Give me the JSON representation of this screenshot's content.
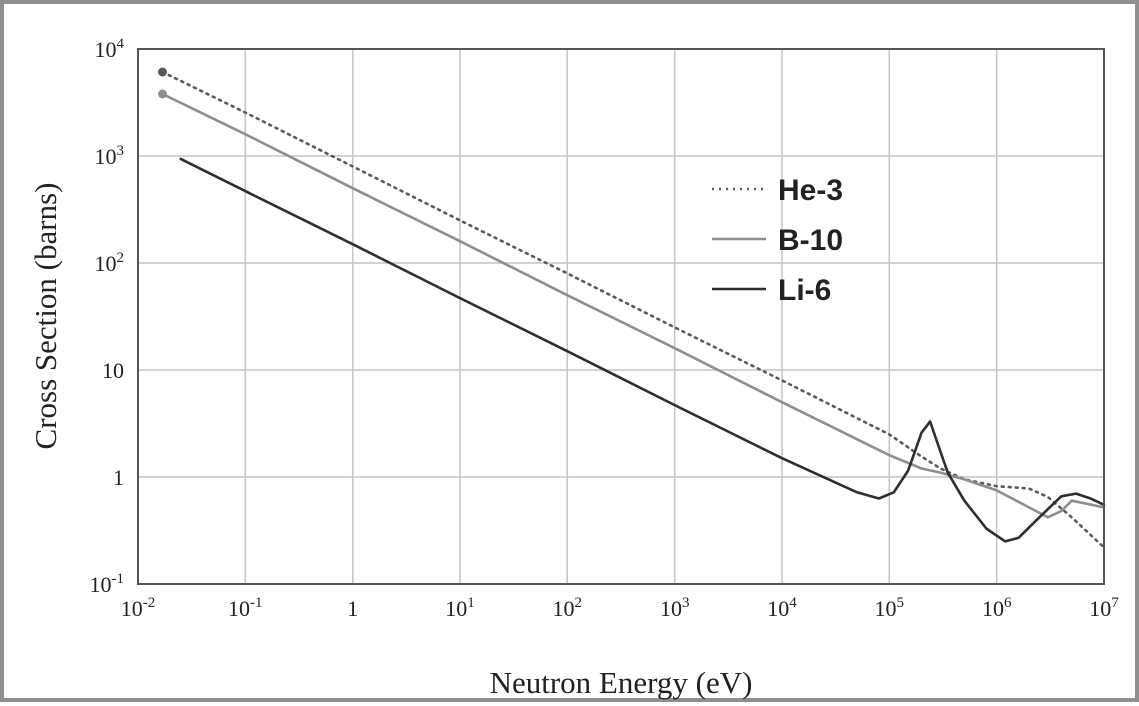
{
  "chart_data": {
    "type": "line",
    "title": "",
    "xlabel": "Neutron Energy (eV)",
    "ylabel": "Cross Section (barns)",
    "x_scale": "log",
    "y_scale": "log",
    "xlim": [
      0.01,
      10000000
    ],
    "ylim": [
      0.1,
      10000
    ],
    "grid": true,
    "legend_position": "top-right",
    "x_ticks": [
      {
        "value": 0.01,
        "base": "10",
        "exp": "-2"
      },
      {
        "value": 0.1,
        "base": "10",
        "exp": "-1"
      },
      {
        "value": 1,
        "base": "1",
        "exp": ""
      },
      {
        "value": 10,
        "base": "10",
        "exp": "1"
      },
      {
        "value": 100,
        "base": "10",
        "exp": "2"
      },
      {
        "value": 1000,
        "base": "10",
        "exp": "3"
      },
      {
        "value": 10000,
        "base": "10",
        "exp": "4"
      },
      {
        "value": 100000,
        "base": "10",
        "exp": "5"
      },
      {
        "value": 1000000,
        "base": "10",
        "exp": "6"
      },
      {
        "value": 10000000,
        "base": "10",
        "exp": "7"
      }
    ],
    "y_ticks": [
      {
        "value": 0.1,
        "base": "10",
        "exp": "-1"
      },
      {
        "value": 1,
        "base": "1",
        "exp": ""
      },
      {
        "value": 10,
        "base": "10",
        "exp": ""
      },
      {
        "value": 100,
        "base": "10",
        "exp": "2"
      },
      {
        "value": 1000,
        "base": "10",
        "exp": "3"
      },
      {
        "value": 10000,
        "base": "10",
        "exp": "4"
      }
    ],
    "series": [
      {
        "name": "He-3",
        "style": "dotted",
        "color": "#5a5a5a",
        "marker_at_start": true,
        "points": [
          [
            0.0169,
            6100
          ],
          [
            0.1,
            2550
          ],
          [
            1,
            800
          ],
          [
            10,
            250
          ],
          [
            100,
            80
          ],
          [
            1000,
            25
          ],
          [
            10000,
            8
          ],
          [
            100000,
            2.5
          ],
          [
            200000,
            1.55
          ],
          [
            300000,
            1.2
          ],
          [
            500000,
            0.95
          ],
          [
            1000000,
            0.82
          ],
          [
            2000000,
            0.78
          ],
          [
            3000000,
            0.65
          ],
          [
            5000000,
            0.42
          ],
          [
            10000000,
            0.22
          ]
        ]
      },
      {
        "name": "B-10",
        "style": "solid",
        "color": "#8e8e8e",
        "marker_at_start": true,
        "points": [
          [
            0.0169,
            3800
          ],
          [
            0.1,
            1600
          ],
          [
            1,
            500
          ],
          [
            10,
            160
          ],
          [
            100,
            50
          ],
          [
            1000,
            16
          ],
          [
            10000,
            5
          ],
          [
            100000,
            1.6
          ],
          [
            200000,
            1.2
          ],
          [
            300000,
            1.1
          ],
          [
            500000,
            0.95
          ],
          [
            1000000,
            0.75
          ],
          [
            2000000,
            0.52
          ],
          [
            3000000,
            0.42
          ],
          [
            4000000,
            0.48
          ],
          [
            5000000,
            0.6
          ],
          [
            10000000,
            0.52
          ]
        ]
      },
      {
        "name": "Li-6",
        "style": "solid",
        "color": "#2e2e2e",
        "marker_at_start": false,
        "points": [
          [
            0.025,
            940
          ],
          [
            0.1,
            470
          ],
          [
            1,
            150
          ],
          [
            10,
            47
          ],
          [
            100,
            15
          ],
          [
            1000,
            4.7
          ],
          [
            10000,
            1.5
          ],
          [
            50000,
            0.72
          ],
          [
            80000,
            0.63
          ],
          [
            110000,
            0.72
          ],
          [
            150000,
            1.15
          ],
          [
            200000,
            2.6
          ],
          [
            240000,
            3.3
          ],
          [
            280000,
            2.1
          ],
          [
            350000,
            1.1
          ],
          [
            500000,
            0.6
          ],
          [
            800000,
            0.33
          ],
          [
            1200000,
            0.25
          ],
          [
            1600000,
            0.27
          ],
          [
            2500000,
            0.42
          ],
          [
            4000000,
            0.66
          ],
          [
            5500000,
            0.7
          ],
          [
            7500000,
            0.63
          ],
          [
            10000000,
            0.55
          ]
        ]
      }
    ]
  }
}
